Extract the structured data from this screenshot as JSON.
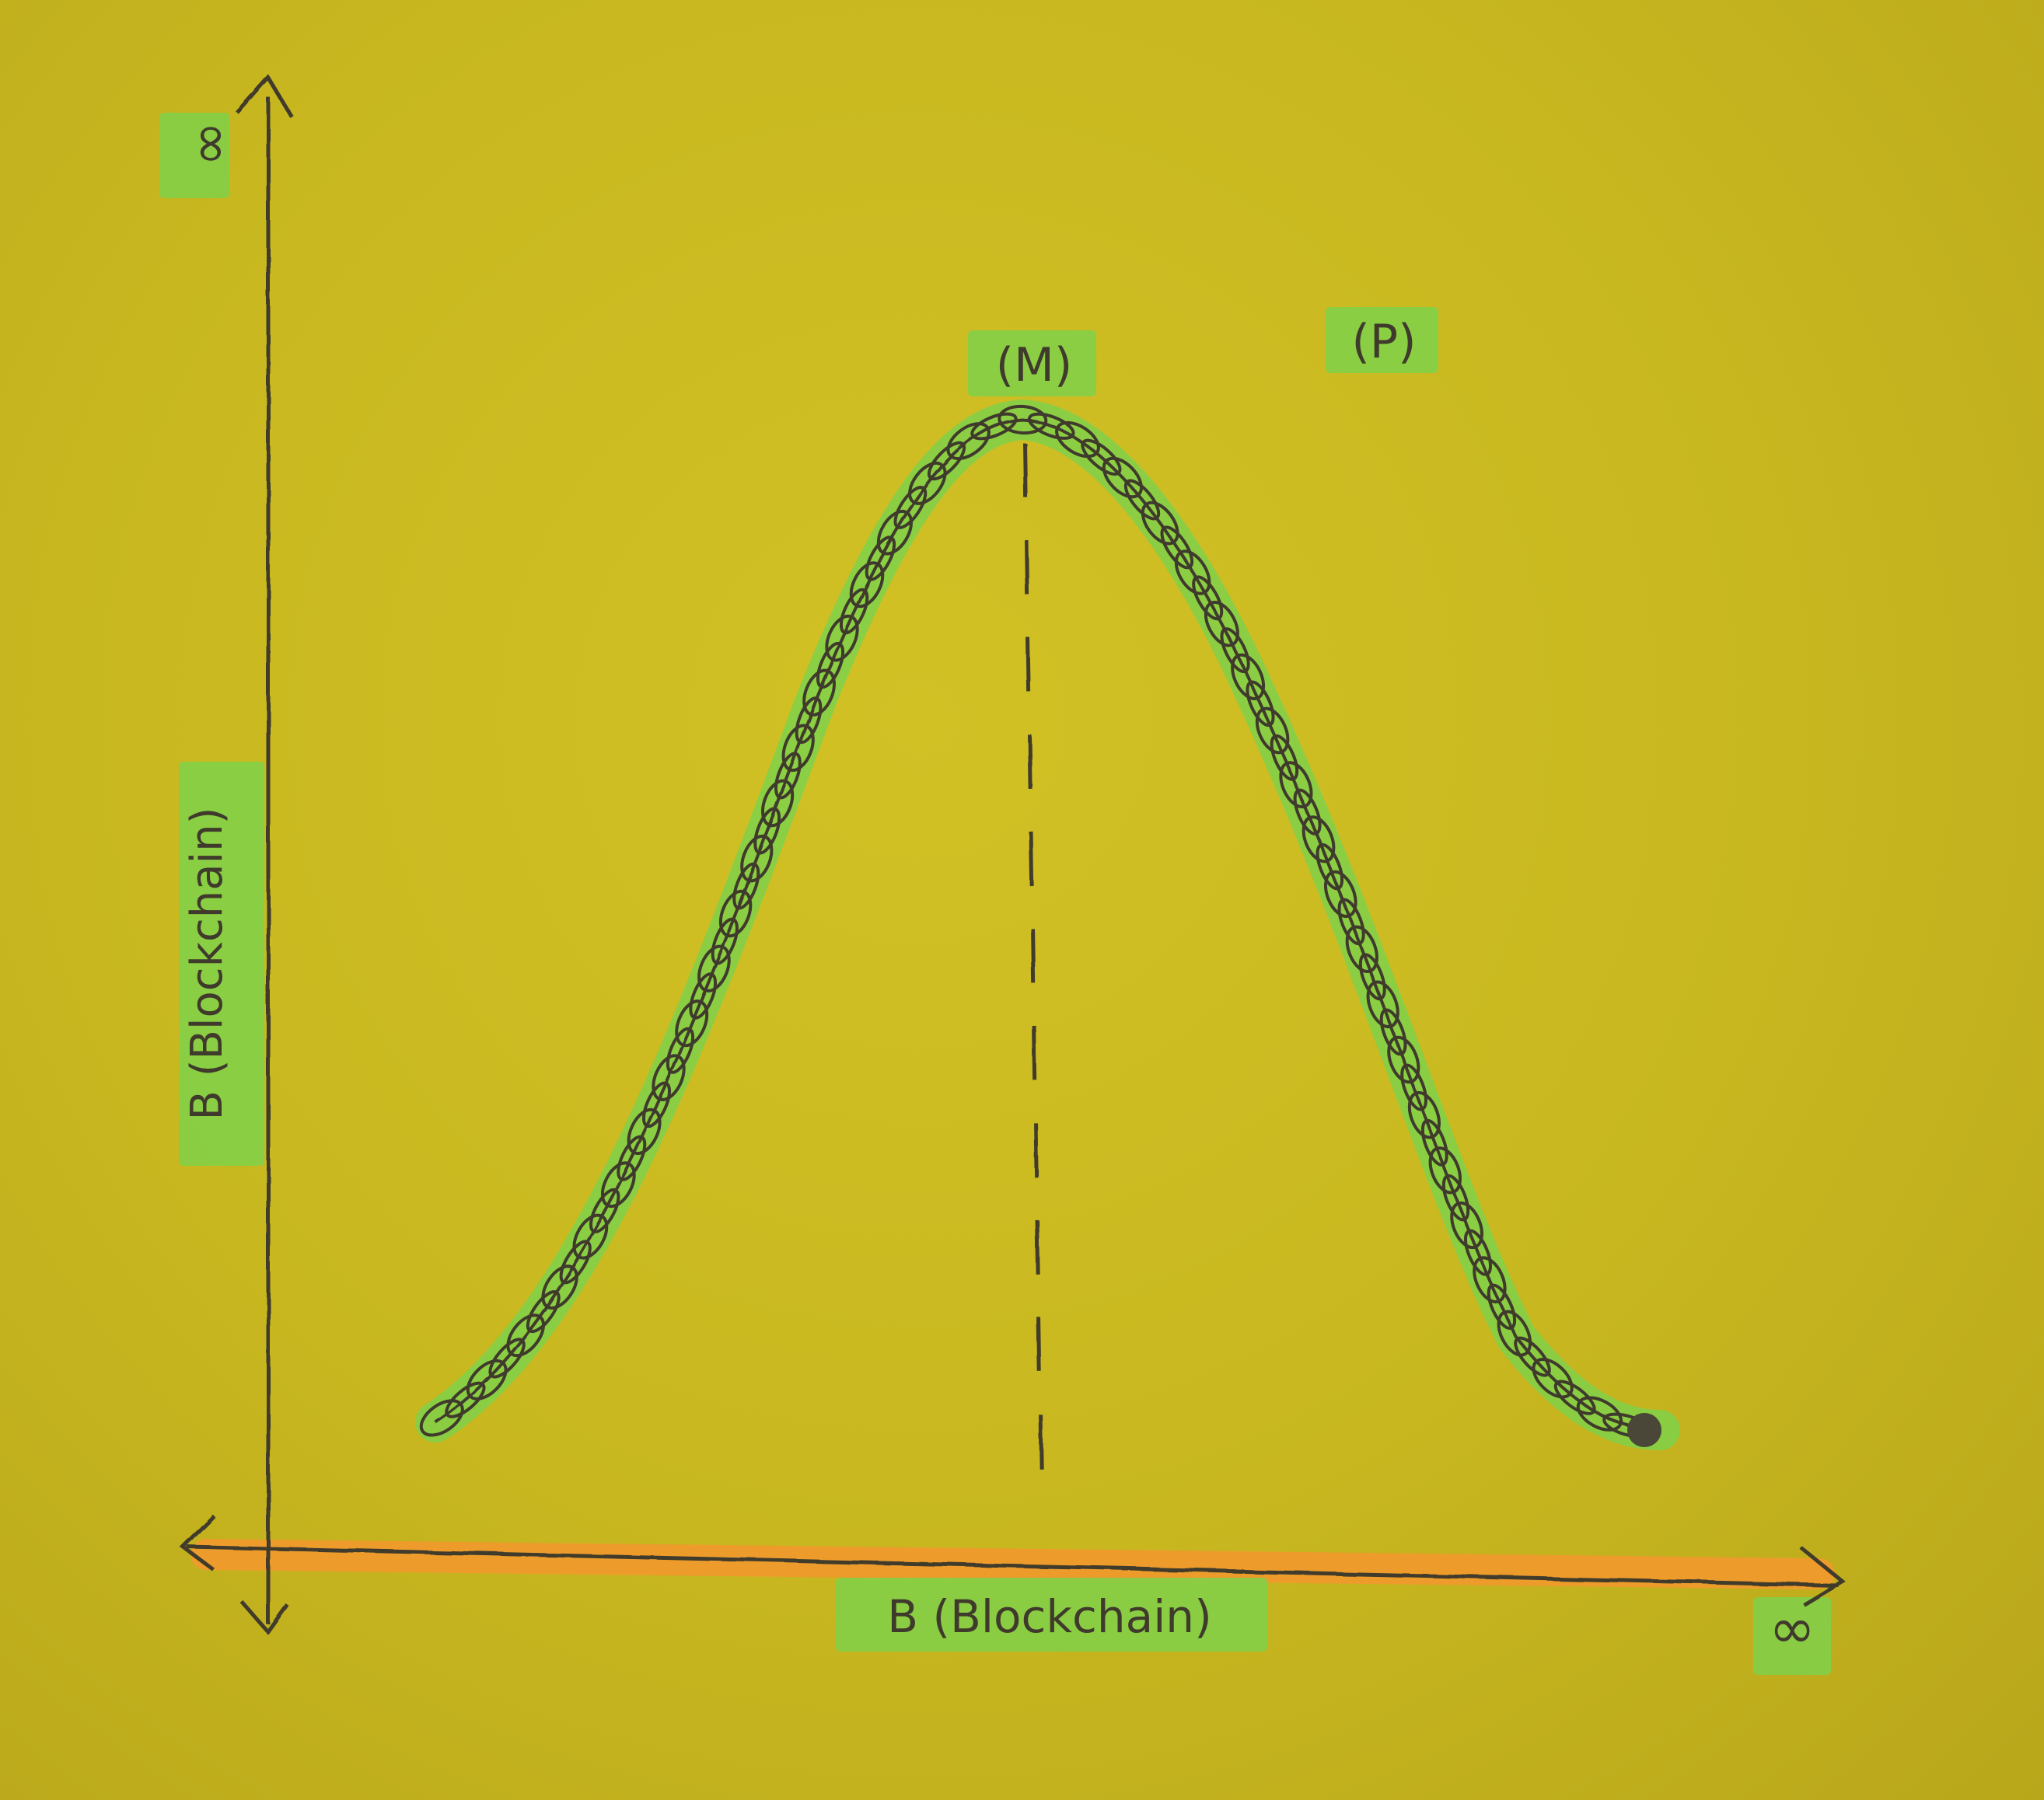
{
  "labels": {
    "y_axis_label": "B (Blockchain)",
    "x_axis_label": "B (Blockchain)",
    "y_axis_top": "∞",
    "x_axis_end": "∞",
    "peak_label": "(M)",
    "right_label": "(P)"
  },
  "colors": {
    "paper": "#c9b81f",
    "highlight_green": "#7fd14a",
    "highlight_orange": "#f29a2e",
    "ink": "#3f3a2c"
  }
}
